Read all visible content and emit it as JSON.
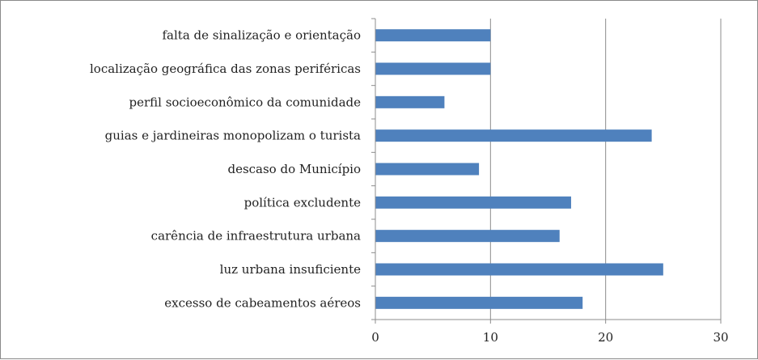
{
  "chart_data": {
    "type": "bar",
    "orientation": "horizontal",
    "title": "",
    "xlabel": "",
    "ylabel": "",
    "categories": [
      "falta de sinalização e orientação",
      "localização geográfica das zonas periféricas",
      "perfil socioeconômico da comunidade",
      "guias e jardineiras monopolizam o turista",
      "descaso do Município",
      "política excludente",
      "carência de infraestrutura urbana",
      "luz urbana insuficiente",
      "excesso de cabeamentos aéreos"
    ],
    "values": [
      10,
      10,
      6,
      24,
      9,
      17,
      16,
      25,
      18
    ],
    "xlim": [
      0,
      30
    ],
    "ticks": [
      0,
      10,
      20,
      30
    ],
    "tick_labels": [
      "0",
      "10",
      "20",
      "30"
    ],
    "bar_color": "#4f81bd",
    "grid": true,
    "legend": "none"
  }
}
